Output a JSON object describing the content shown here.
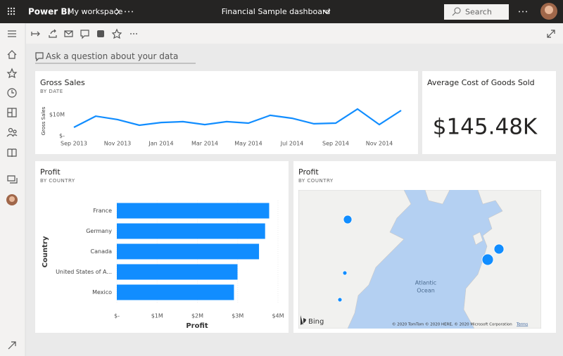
{
  "header": {
    "app": "Power BI",
    "workspace": "My workspace",
    "dashboard": "Financial Sample dashboard",
    "search": "Search"
  },
  "qa": {
    "placeholder": "Ask a question about your data"
  },
  "tiles": [
    {
      "title": "Gross Sales",
      "subtitle": "BY DATE",
      "chart": {
        "type": "line",
        "y_label": "Gross Sales",
        "categories": [
          "Sep 2013",
          null,
          "Nov 2013",
          null,
          "Jan 2014",
          null,
          "Mar 2014",
          null,
          "May 2014",
          null,
          "Jul 2014",
          null,
          "Sep 2014",
          null,
          "Nov 2014",
          null
        ],
        "values": [
          4000000,
          9300000,
          7700000,
          5000000,
          6300000,
          6700000,
          5300000,
          6700000,
          6000000,
          9700000,
          8300000,
          5700000,
          6000000,
          12700000,
          5300000,
          12000000
        ],
        "color": "#118dff",
        "ylim": [
          0,
          14000000
        ],
        "yticks": [
          {
            "value": 0,
            "label": "$-"
          },
          {
            "value": 10000000,
            "label": "$10M"
          }
        ]
      }
    },
    {
      "title": "Average Cost of Goods Sold",
      "value": "$145.48K"
    },
    {
      "title": "Profit",
      "subtitle": "BY COUNTRY",
      "chart": {
        "type": "bar",
        "orientation": "horizontal",
        "x_label": "Profit",
        "y_label": "Country",
        "categories": [
          "France",
          "Germany",
          "Canada",
          "United States of A...",
          "Mexico"
        ],
        "values": [
          3781020,
          3680389,
          3529229,
          2995540,
          2907523
        ],
        "color": "#118dff",
        "xlim": [
          0,
          4000000
        ],
        "xticks": [
          {
            "value": 0,
            "label": "$-"
          },
          {
            "value": 1000000,
            "label": "$1M"
          },
          {
            "value": 2000000,
            "label": "$2M"
          },
          {
            "value": 3000000,
            "label": "$3M"
          },
          {
            "value": 4000000,
            "label": "$4M"
          }
        ],
        "grid": true
      }
    },
    {
      "title": "Profit",
      "subtitle": "BY COUNTRY",
      "map": {
        "labels": [
          "Atlantic",
          "Ocean"
        ],
        "provider": "Bing",
        "attribution": "© 2020 TomTom © 2020 HERE, © 2020 Microsoft Corporation",
        "terms": "Terms"
      }
    }
  ]
}
